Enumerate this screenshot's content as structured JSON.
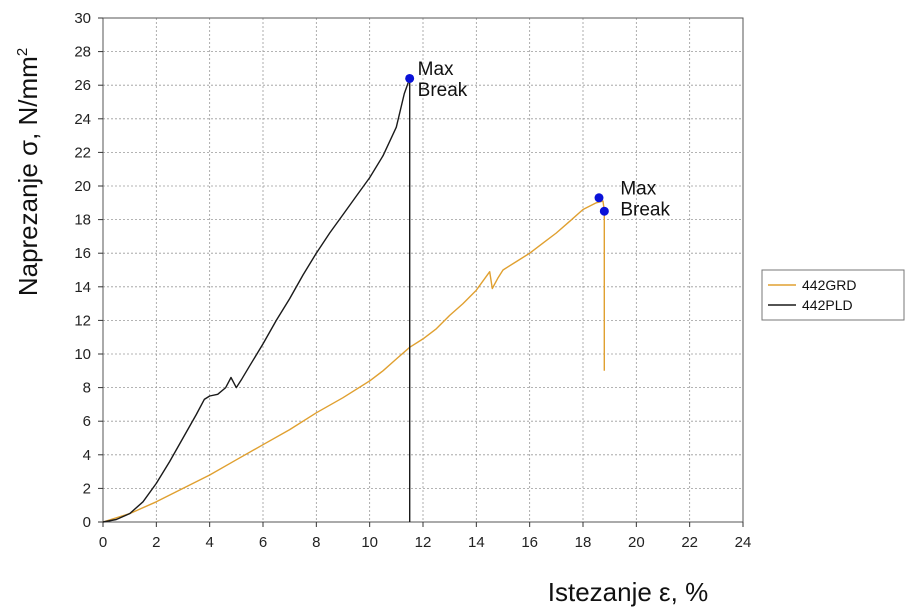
{
  "chart_data": {
    "type": "line",
    "xlabel": "Istezanje ε, %",
    "ylabel_main": "Naprezanje σ, N/mm",
    "ylabel_sup": "2",
    "xlim": [
      0,
      24
    ],
    "ylim": [
      0,
      30
    ],
    "x_ticks": [
      "0",
      "2",
      "4",
      "6",
      "8",
      "10",
      "12",
      "14",
      "16",
      "18",
      "20",
      "22",
      "24"
    ],
    "y_ticks": [
      "0",
      "2",
      "4",
      "6",
      "8",
      "10",
      "12",
      "14",
      "16",
      "18",
      "20",
      "22",
      "24",
      "26",
      "28",
      "30"
    ],
    "grid": true,
    "legend_position": "right",
    "series": [
      {
        "name": "442GRD",
        "color": "#e0a030",
        "points": [
          [
            0,
            0
          ],
          [
            1,
            0.5
          ],
          [
            2,
            1.2
          ],
          [
            3,
            2
          ],
          [
            4,
            2.8
          ],
          [
            5,
            3.7
          ],
          [
            6,
            4.6
          ],
          [
            7,
            5.5
          ],
          [
            8,
            6.5
          ],
          [
            9,
            7.4
          ],
          [
            10,
            8.4
          ],
          [
            10.5,
            9
          ],
          [
            11,
            9.7
          ],
          [
            11.5,
            10.4
          ],
          [
            12,
            10.9
          ],
          [
            12.5,
            11.5
          ],
          [
            13,
            12.3
          ],
          [
            13.5,
            13
          ],
          [
            14,
            13.8
          ],
          [
            14.5,
            14.9
          ],
          [
            14.6,
            13.9
          ],
          [
            14.8,
            14.5
          ],
          [
            15,
            15
          ],
          [
            15.5,
            15.5
          ],
          [
            16,
            16
          ],
          [
            16.5,
            16.6
          ],
          [
            17,
            17.2
          ],
          [
            17.5,
            17.9
          ],
          [
            18,
            18.6
          ],
          [
            18.5,
            19
          ],
          [
            18.75,
            19.1
          ],
          [
            18.8,
            18.5
          ],
          [
            18.8,
            9
          ]
        ]
      },
      {
        "name": "442PLD",
        "color": "#1a1a1a",
        "points": [
          [
            0,
            0
          ],
          [
            0.5,
            0.15
          ],
          [
            1,
            0.5
          ],
          [
            1.5,
            1.2
          ],
          [
            2,
            2.3
          ],
          [
            2.5,
            3.6
          ],
          [
            3,
            5
          ],
          [
            3.5,
            6.4
          ],
          [
            3.8,
            7.3
          ],
          [
            4,
            7.5
          ],
          [
            4.3,
            7.6
          ],
          [
            4.6,
            8
          ],
          [
            4.8,
            8.6
          ],
          [
            5,
            8
          ],
          [
            5.2,
            8.5
          ],
          [
            5.5,
            9.3
          ],
          [
            6,
            10.6
          ],
          [
            6.5,
            12
          ],
          [
            7,
            13.3
          ],
          [
            7.5,
            14.7
          ],
          [
            8,
            16
          ],
          [
            8.5,
            17.2
          ],
          [
            9,
            18.3
          ],
          [
            9.5,
            19.4
          ],
          [
            10,
            20.5
          ],
          [
            10.5,
            21.8
          ],
          [
            11,
            23.5
          ],
          [
            11.3,
            25.5
          ],
          [
            11.5,
            26.4
          ],
          [
            11.5,
            0
          ]
        ]
      }
    ],
    "markers": [
      {
        "x": 11.5,
        "y": 26.4,
        "color": "#0a12d8"
      },
      {
        "x": 18.6,
        "y": 19.3,
        "color": "#0a12d8"
      },
      {
        "x": 18.8,
        "y": 18.5,
        "color": "#0a12d8"
      }
    ],
    "annotations": [
      {
        "lines": [
          "Max",
          "Break"
        ],
        "x": 11.8,
        "y": 26.6
      },
      {
        "lines": [
          "Max",
          "Break"
        ],
        "x": 19.4,
        "y": 19.5
      }
    ]
  }
}
